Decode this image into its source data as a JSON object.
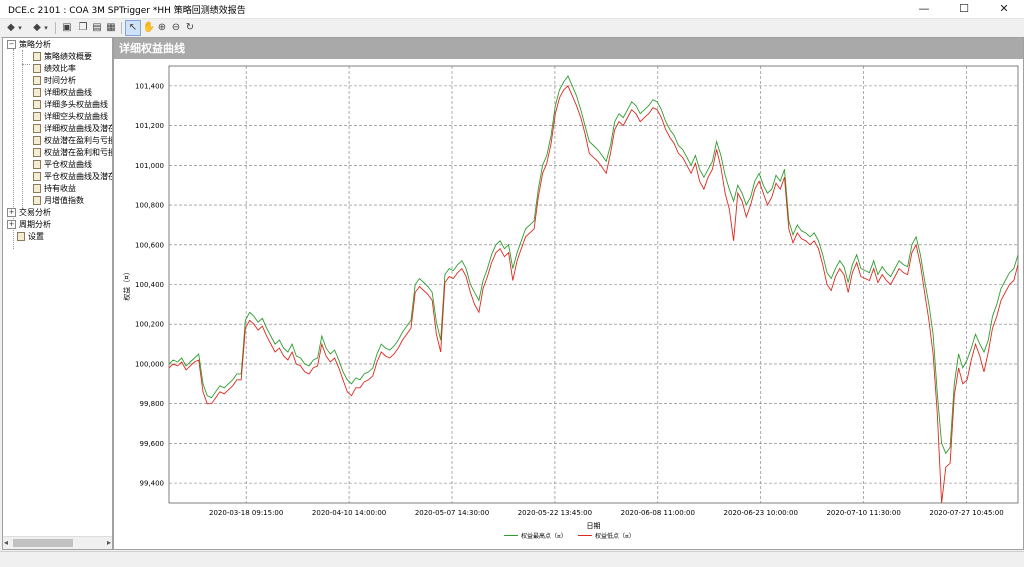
{
  "window": {
    "title": "DCE.c 2101 : COA 3M SPTrigger *HH 策略回测绩效报告",
    "minimize_glyph": "—",
    "maximize_glyph": "☐",
    "close_glyph": "✕"
  },
  "toolbar": {
    "icons": [
      "back-icon",
      "back-dropdown-icon",
      "forward-icon",
      "forward-dropdown-icon",
      "save-icon",
      "copy-icon",
      "print-icon",
      "table-icon",
      "pointer-icon",
      "hand-icon",
      "zoom-in-icon",
      "zoom-out-icon",
      "reset-zoom-icon"
    ]
  },
  "tree": {
    "root_strategy": {
      "label": "策略分析",
      "expanded": true
    },
    "items": [
      {
        "label": "策略绩效概要"
      },
      {
        "label": "绩效比率"
      },
      {
        "label": "时间分析"
      },
      {
        "label": "详细权益曲线"
      },
      {
        "label": "详细多头权益曲线"
      },
      {
        "label": "详细空头权益曲线"
      },
      {
        "label": "详细权益曲线及潜在"
      },
      {
        "label": "权益潜在盈利与亏损"
      },
      {
        "label": "权益潜在盈利和亏损"
      },
      {
        "label": "平仓权益曲线"
      },
      {
        "label": "平仓权益曲线及潜在"
      },
      {
        "label": "持有收益"
      },
      {
        "label": "月增值指数"
      }
    ],
    "root_trade": {
      "label": "交易分析",
      "expanded": false
    },
    "root_period": {
      "label": "周期分析",
      "expanded": false
    },
    "root_settings": {
      "label": "设置"
    }
  },
  "panel": {
    "header": "详细权益曲线"
  },
  "chart_data": {
    "type": "line",
    "title": "",
    "xlabel": "日期",
    "ylabel": "权益（¤）",
    "ylim": [
      99.3,
      101.5
    ],
    "yticks": [
      99.4,
      99.6,
      99.8,
      100.0,
      100.2,
      100.4,
      100.6,
      100.8,
      101.0,
      101.2,
      101.4
    ],
    "ytick_labels": [
      "99,400",
      "99,600",
      "99,800",
      "100,000",
      "100,200",
      "100,400",
      "100,600",
      "100,800",
      "101,000",
      "101,200",
      "101,400"
    ],
    "xtick_labels": [
      "2020-03-18 09:15:00",
      "2020-04-10 14:00:00",
      "2020-05-07 14:30:00",
      "2020-05-22 13:45:00",
      "2020-06-08 11:00:00",
      "2020-06-23 10:00:00",
      "2020-07-10 11:30:00",
      "2020-07-27 10:45:00"
    ],
    "grid": true,
    "legend_position": "bottom-center",
    "x": [
      0,
      1,
      2,
      3,
      4,
      5,
      6,
      7,
      8,
      9,
      10,
      11,
      12,
      13,
      14,
      15,
      16,
      17,
      18,
      19,
      20,
      21,
      22,
      23,
      24,
      25,
      26,
      27,
      28,
      29,
      30,
      31,
      32,
      33,
      34,
      35,
      36,
      37,
      38,
      39,
      40,
      41,
      42,
      43,
      44,
      45,
      46,
      47,
      48,
      49,
      50,
      51,
      52,
      53,
      54,
      55,
      56,
      57,
      58,
      59,
      60,
      61,
      62,
      63,
      64,
      65,
      66,
      67,
      68,
      69,
      70,
      71,
      72,
      73,
      74,
      75,
      76,
      77,
      78,
      79,
      80,
      81,
      82,
      83,
      84,
      85,
      86,
      87,
      88,
      89,
      90,
      91,
      92,
      93,
      94,
      95,
      96,
      97,
      98,
      99,
      100,
      101,
      102,
      103,
      104,
      105,
      106,
      107,
      108,
      109,
      110,
      111,
      112,
      113,
      114,
      115,
      116,
      117,
      118,
      119,
      120,
      121,
      122,
      123,
      124,
      125,
      126,
      127,
      128,
      129,
      130,
      131,
      132,
      133,
      134,
      135,
      136,
      137,
      138,
      139,
      140,
      141,
      142,
      143,
      144,
      145,
      146,
      147,
      148,
      149,
      150,
      151,
      152,
      153,
      154,
      155,
      156,
      157,
      158,
      159,
      160,
      161,
      162,
      163,
      164,
      165,
      166,
      167,
      168,
      169,
      170,
      171,
      172,
      173,
      174,
      175,
      176,
      177,
      178,
      179,
      180,
      181,
      182,
      183,
      184,
      185,
      186,
      187,
      188,
      189,
      190,
      191,
      192,
      193,
      194,
      195,
      196,
      197,
      198,
      199,
      200
    ],
    "series": [
      {
        "name": "权益最高点（¤）",
        "color": "#2e9e2e",
        "values": [
          100.0,
          100.02,
          100.01,
          100.03,
          99.99,
          100.01,
          100.03,
          100.05,
          99.9,
          99.84,
          99.83,
          99.86,
          99.89,
          99.88,
          99.9,
          99.92,
          99.95,
          99.95,
          100.22,
          100.26,
          100.24,
          100.21,
          100.23,
          100.18,
          100.14,
          100.1,
          100.12,
          100.08,
          100.06,
          100.1,
          100.04,
          100.03,
          100.0,
          99.99,
          100.02,
          100.03,
          100.14,
          100.08,
          100.05,
          100.07,
          100.02,
          99.96,
          99.92,
          99.9,
          99.93,
          99.92,
          99.95,
          99.96,
          99.98,
          100.05,
          100.1,
          100.08,
          100.07,
          100.09,
          100.12,
          100.16,
          100.19,
          100.22,
          100.4,
          100.43,
          100.41,
          100.39,
          100.36,
          100.21,
          100.12,
          100.45,
          100.48,
          100.47,
          100.5,
          100.52,
          100.48,
          100.4,
          100.36,
          100.32,
          100.42,
          100.48,
          100.55,
          100.6,
          100.62,
          100.58,
          100.6,
          100.48,
          100.56,
          100.62,
          100.68,
          100.7,
          100.72,
          100.88,
          101.0,
          101.05,
          101.15,
          101.3,
          101.38,
          101.42,
          101.45,
          101.4,
          101.35,
          101.28,
          101.2,
          101.12,
          101.1,
          101.08,
          101.05,
          101.02,
          101.1,
          101.22,
          101.26,
          101.24,
          101.28,
          101.32,
          101.3,
          101.26,
          101.28,
          101.3,
          101.33,
          101.32,
          101.28,
          101.22,
          101.18,
          101.15,
          101.1,
          101.08,
          101.04,
          101.0,
          101.05,
          100.98,
          100.94,
          100.98,
          101.02,
          101.12,
          101.05,
          100.95,
          100.88,
          100.82,
          100.9,
          100.86,
          100.8,
          100.84,
          100.92,
          100.96,
          100.9,
          100.86,
          100.88,
          100.95,
          100.92,
          100.98,
          100.72,
          100.65,
          100.7,
          100.67,
          100.66,
          100.64,
          100.66,
          100.62,
          100.55,
          100.46,
          100.43,
          100.48,
          100.52,
          100.49,
          100.41,
          100.5,
          100.55,
          100.48,
          100.47,
          100.46,
          100.52,
          100.45,
          100.49,
          100.46,
          100.44,
          100.48,
          100.52,
          100.5,
          100.49,
          100.6,
          100.64,
          100.55,
          100.42,
          100.3,
          100.15,
          99.85,
          99.6,
          99.55,
          99.58,
          99.9,
          100.05,
          99.98,
          100.02,
          100.08,
          100.15,
          100.1,
          100.06,
          100.12,
          100.24,
          100.3,
          100.38,
          100.42,
          100.46,
          100.48,
          100.55
        ]
      },
      {
        "name": "权益低点（¤）",
        "color": "#e0281e",
        "values": [
          99.98,
          100.0,
          99.99,
          100.01,
          99.97,
          99.99,
          100.01,
          100.02,
          99.86,
          99.8,
          99.8,
          99.83,
          99.86,
          99.85,
          99.87,
          99.89,
          99.92,
          99.92,
          100.18,
          100.22,
          100.2,
          100.17,
          100.19,
          100.14,
          100.1,
          100.06,
          100.08,
          100.04,
          100.02,
          100.06,
          100.0,
          99.99,
          99.96,
          99.95,
          99.98,
          99.99,
          100.1,
          100.04,
          100.01,
          100.03,
          99.98,
          99.92,
          99.86,
          99.84,
          99.88,
          99.88,
          99.91,
          99.92,
          99.94,
          100.01,
          100.06,
          100.04,
          100.03,
          100.05,
          100.08,
          100.12,
          100.15,
          100.18,
          100.36,
          100.39,
          100.37,
          100.35,
          100.32,
          100.15,
          100.06,
          100.41,
          100.44,
          100.43,
          100.46,
          100.48,
          100.44,
          100.36,
          100.3,
          100.26,
          100.38,
          100.44,
          100.51,
          100.56,
          100.58,
          100.54,
          100.56,
          100.42,
          100.52,
          100.58,
          100.64,
          100.66,
          100.68,
          100.84,
          100.96,
          101.01,
          101.11,
          101.26,
          101.34,
          101.38,
          101.4,
          101.35,
          101.3,
          101.24,
          101.16,
          101.06,
          101.04,
          101.02,
          100.99,
          100.96,
          101.06,
          101.18,
          101.22,
          101.2,
          101.24,
          101.28,
          101.26,
          101.22,
          101.24,
          101.26,
          101.29,
          101.28,
          101.24,
          101.18,
          101.14,
          101.11,
          101.06,
          101.04,
          101.0,
          100.96,
          101.01,
          100.92,
          100.88,
          100.94,
          100.98,
          101.08,
          100.99,
          100.86,
          100.78,
          100.62,
          100.86,
          100.82,
          100.74,
          100.8,
          100.88,
          100.92,
          100.86,
          100.8,
          100.84,
          100.91,
          100.88,
          100.94,
          100.68,
          100.61,
          100.66,
          100.63,
          100.62,
          100.6,
          100.62,
          100.58,
          100.5,
          100.4,
          100.37,
          100.44,
          100.48,
          100.45,
          100.36,
          100.46,
          100.51,
          100.44,
          100.43,
          100.42,
          100.48,
          100.41,
          100.45,
          100.42,
          100.4,
          100.44,
          100.48,
          100.46,
          100.45,
          100.56,
          100.6,
          100.5,
          100.36,
          100.22,
          100.05,
          99.75,
          99.3,
          99.48,
          99.5,
          99.84,
          99.98,
          99.9,
          99.92,
          100.02,
          100.1,
          100.04,
          99.96,
          100.06,
          100.18,
          100.24,
          100.32,
          100.36,
          100.4,
          100.42,
          100.5
        ]
      }
    ]
  }
}
